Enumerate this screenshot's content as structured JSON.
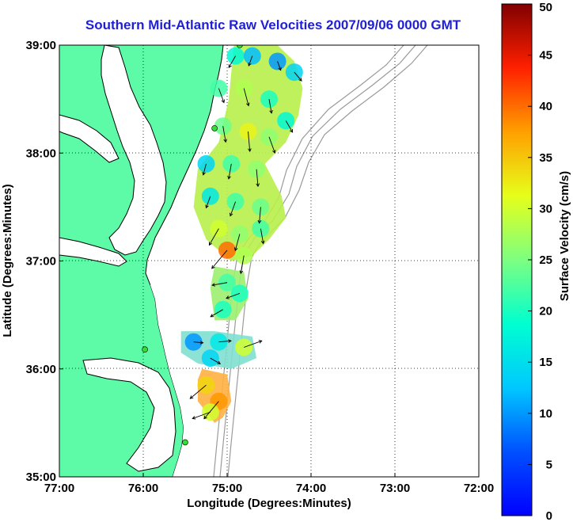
{
  "title": "Southern Mid-Atlantic Raw Velocities 2007/09/06 0000 GMT",
  "xlabel": "Longitude (Degrees:Minutes)",
  "ylabel": "Latitude (Degrees:Minutes)",
  "colorbar_label": "Surface Velocity (cm/s)",
  "colors": {
    "land": "#5dfaa8",
    "coast": "#000000",
    "bathymetry": "#9a9a9a",
    "station": "#33dd33",
    "grid": "#000000"
  },
  "chart_data": {
    "type": "vector-field-map",
    "xlim": [
      -77,
      -72
    ],
    "ylim": [
      35,
      39
    ],
    "x_ticks": [
      {
        "value": -77,
        "label": "77:00"
      },
      {
        "value": -76,
        "label": "76:00"
      },
      {
        "value": -75,
        "label": "75:00"
      },
      {
        "value": -74,
        "label": "74:00"
      },
      {
        "value": -73,
        "label": "73:00"
      },
      {
        "value": -72,
        "label": "72:00"
      }
    ],
    "y_ticks": [
      {
        "value": 35,
        "label": "35:00"
      },
      {
        "value": 36,
        "label": "36:00"
      },
      {
        "value": 37,
        "label": "37:00"
      },
      {
        "value": 38,
        "label": "38:00"
      },
      {
        "value": 39,
        "label": "39:00"
      }
    ],
    "grid": true,
    "colorbar": {
      "min": 0,
      "max": 50,
      "ticks": [
        0,
        5,
        10,
        15,
        20,
        25,
        30,
        35,
        40,
        45,
        50
      ],
      "colormap": "jet"
    },
    "regions": [
      {
        "lon": [
          -74.92,
          -74.7,
          -74.4,
          -74.2,
          -74.1,
          -74.15,
          -74.3,
          -74.55,
          -74.35,
          -74.3,
          -74.5,
          -74.7,
          -74.95,
          -75.25,
          -75.4,
          -75.35,
          -75.1,
          -74.98,
          -74.92
        ],
        "lat": [
          39.0,
          39.05,
          39.0,
          38.85,
          38.6,
          38.35,
          38.1,
          37.9,
          37.6,
          37.4,
          37.2,
          37.05,
          37.0,
          37.2,
          37.5,
          37.85,
          38.1,
          38.5,
          39.0
        ]
      },
      {
        "lon": [
          -75.15,
          -74.8,
          -74.75,
          -74.9,
          -75.15,
          -75.2,
          -75.15
        ],
        "lat": [
          36.95,
          36.9,
          36.65,
          36.45,
          36.45,
          36.75,
          36.95
        ]
      },
      {
        "lon": [
          -75.55,
          -75.15,
          -74.7,
          -74.65,
          -74.95,
          -75.35,
          -75.55,
          -75.55
        ],
        "lat": [
          36.35,
          36.35,
          36.3,
          36.1,
          36.0,
          36.05,
          36.15,
          36.35
        ]
      },
      {
        "lon": [
          -75.3,
          -75.0,
          -74.95,
          -75.05,
          -75.15,
          -75.35,
          -75.35,
          -75.3
        ],
        "lat": [
          36.0,
          35.95,
          35.7,
          35.55,
          35.5,
          35.7,
          35.9,
          36.0
        ]
      }
    ],
    "vectors": [
      {
        "lon": -74.9,
        "lat": 38.9,
        "speed": 18,
        "dir": 210
      },
      {
        "lon": -74.7,
        "lat": 38.9,
        "speed": 12,
        "dir": 200
      },
      {
        "lon": -74.4,
        "lat": 38.85,
        "speed": 10,
        "dir": 160
      },
      {
        "lon": -74.2,
        "lat": 38.75,
        "speed": 14,
        "dir": 140
      },
      {
        "lon": -75.1,
        "lat": 38.6,
        "speed": 22,
        "dir": 160
      },
      {
        "lon": -74.8,
        "lat": 38.6,
        "speed": 28,
        "dir": 165
      },
      {
        "lon": -74.5,
        "lat": 38.5,
        "speed": 20,
        "dir": 170
      },
      {
        "lon": -74.3,
        "lat": 38.3,
        "speed": 18,
        "dir": 150
      },
      {
        "lon": -75.05,
        "lat": 38.25,
        "speed": 24,
        "dir": 170
      },
      {
        "lon": -74.75,
        "lat": 38.2,
        "speed": 32,
        "dir": 175
      },
      {
        "lon": -74.5,
        "lat": 38.15,
        "speed": 26,
        "dir": 160
      },
      {
        "lon": -75.25,
        "lat": 37.9,
        "speed": 14,
        "dir": 195
      },
      {
        "lon": -74.95,
        "lat": 37.9,
        "speed": 22,
        "dir": 190
      },
      {
        "lon": -74.65,
        "lat": 37.85,
        "speed": 26,
        "dir": 175
      },
      {
        "lon": -75.2,
        "lat": 37.6,
        "speed": 16,
        "dir": 200
      },
      {
        "lon": -74.9,
        "lat": 37.55,
        "speed": 22,
        "dir": 200
      },
      {
        "lon": -74.6,
        "lat": 37.5,
        "speed": 24,
        "dir": 185
      },
      {
        "lon": -75.1,
        "lat": 37.3,
        "speed": 30,
        "dir": 210
      },
      {
        "lon": -74.85,
        "lat": 37.25,
        "speed": 26,
        "dir": 195
      },
      {
        "lon": -74.6,
        "lat": 37.3,
        "speed": 22,
        "dir": 170
      },
      {
        "lon": -75.0,
        "lat": 37.1,
        "speed": 40,
        "dir": 220
      },
      {
        "lon": -74.8,
        "lat": 37.05,
        "speed": 28,
        "dir": 190
      },
      {
        "lon": -75.0,
        "lat": 36.8,
        "speed": 22,
        "dir": 260
      },
      {
        "lon": -74.85,
        "lat": 36.7,
        "speed": 20,
        "dir": 250
      },
      {
        "lon": -75.05,
        "lat": 36.55,
        "speed": 20,
        "dir": 240
      },
      {
        "lon": -75.4,
        "lat": 36.25,
        "speed": 10,
        "dir": 95
      },
      {
        "lon": -75.1,
        "lat": 36.25,
        "speed": 16,
        "dir": 85
      },
      {
        "lon": -74.8,
        "lat": 36.2,
        "speed": 30,
        "dir": 70
      },
      {
        "lon": -75.2,
        "lat": 36.1,
        "speed": 14,
        "dir": 120
      },
      {
        "lon": -75.25,
        "lat": 35.85,
        "speed": 34,
        "dir": 230
      },
      {
        "lon": -75.1,
        "lat": 35.7,
        "speed": 38,
        "dir": 220
      },
      {
        "lon": -75.2,
        "lat": 35.6,
        "speed": 30,
        "dir": 250
      }
    ],
    "stations": [
      {
        "lon": -74.85,
        "lat": 39.0
      },
      {
        "lon": -75.15,
        "lat": 38.23
      },
      {
        "lon": -75.98,
        "lat": 36.18
      },
      {
        "lon": -75.5,
        "lat": 35.32
      }
    ]
  }
}
